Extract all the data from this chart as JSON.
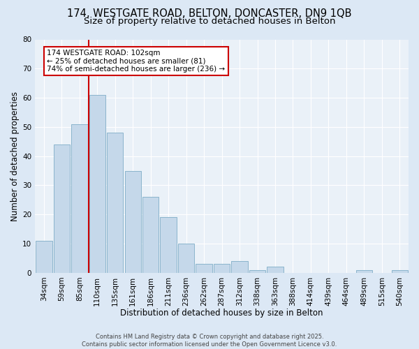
{
  "title1": "174, WESTGATE ROAD, BELTON, DONCASTER, DN9 1QB",
  "title2": "Size of property relative to detached houses in Belton",
  "xlabel": "Distribution of detached houses by size in Belton",
  "ylabel": "Number of detached properties",
  "categories": [
    "34sqm",
    "59sqm",
    "85sqm",
    "110sqm",
    "135sqm",
    "161sqm",
    "186sqm",
    "211sqm",
    "236sqm",
    "262sqm",
    "287sqm",
    "312sqm",
    "338sqm",
    "363sqm",
    "388sqm",
    "414sqm",
    "439sqm",
    "464sqm",
    "489sqm",
    "515sqm",
    "540sqm"
  ],
  "values": [
    11,
    44,
    51,
    61,
    48,
    35,
    26,
    19,
    10,
    3,
    3,
    4,
    1,
    2,
    0,
    0,
    0,
    0,
    1,
    0,
    1
  ],
  "bar_color": "#c5d8ea",
  "bar_edge_color": "#8ab4cc",
  "vline_color": "#cc0000",
  "annotation_text": "174 WESTGATE ROAD: 102sqm\n← 25% of detached houses are smaller (81)\n74% of semi-detached houses are larger (236) →",
  "annotation_box_facecolor": "#ffffff",
  "annotation_box_edgecolor": "#cc0000",
  "footnote": "Contains HM Land Registry data © Crown copyright and database right 2025.\nContains public sector information licensed under the Open Government Licence v3.0.",
  "ylim": [
    0,
    80
  ],
  "yticks": [
    0,
    10,
    20,
    30,
    40,
    50,
    60,
    70,
    80
  ],
  "bg_color": "#dce8f5",
  "plot_bg_color": "#eaf1f8",
  "title1_fontsize": 10.5,
  "title2_fontsize": 9.5,
  "xlabel_fontsize": 8.5,
  "ylabel_fontsize": 8.5,
  "tick_fontsize": 7.5,
  "annot_fontsize": 7.5,
  "footnote_fontsize": 6.0
}
